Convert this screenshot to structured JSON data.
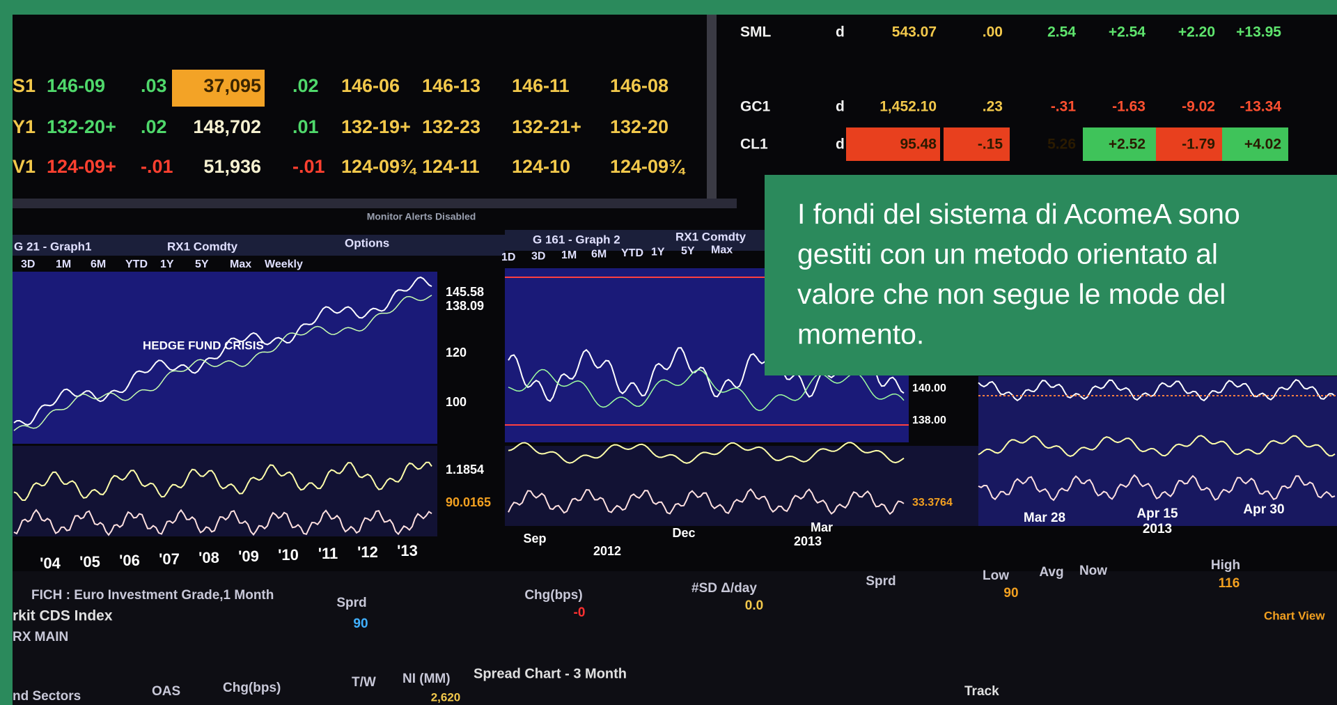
{
  "quotes_left": {
    "rows": [
      [
        "S1",
        "146-09",
        ".03",
        "37,095",
        ".02",
        "146-06",
        "146-13",
        "146-11",
        "146-08"
      ],
      [
        "Y1",
        "132-20+",
        ".02",
        "148,702",
        ".01",
        "132-19+",
        "132-23",
        "132-21+",
        "132-20"
      ],
      [
        "V1",
        "124-09+",
        "-.01",
        "51,936",
        "-.01",
        "124-09¾",
        "124-11",
        "124-10",
        "124-09¾"
      ]
    ]
  },
  "quotes_right": {
    "rows": [
      [
        "SML",
        "d",
        "543.07",
        ".00",
        "2.54",
        "+2.54",
        "+2.20",
        "+13.95"
      ],
      [
        "GC1",
        "d",
        "1,452.10",
        ".23",
        "-.31",
        "-1.63",
        "-9.02",
        "-13.34"
      ],
      [
        "CL1",
        "d",
        "95.48",
        "-.15",
        "5.26",
        "+2.52",
        "-1.79",
        "+4.02"
      ]
    ]
  },
  "status": "Monitor Alerts Disabled",
  "graph1": {
    "title": "G 21 - Graph1",
    "security": "RX1 Comdty",
    "options": "Options",
    "periods": [
      "3D",
      "1M",
      "6M",
      "YTD",
      "1Y",
      "5Y",
      "Max",
      "Weekly"
    ],
    "annotation": "HEDGE FUND CRISIS",
    "price_labels": [
      "145.58",
      "138.09",
      "120",
      "100",
      "1.1854",
      "90.0165"
    ],
    "years": [
      "'04",
      "'05",
      "'06",
      "'07",
      "'08",
      "'09",
      "'10",
      "'11",
      "'12",
      "'13"
    ]
  },
  "graph2": {
    "title": "G 161 - Graph 2",
    "security": "RX1 Comdty",
    "periods": [
      "1D",
      "3D",
      "1M",
      "6M",
      "YTD",
      "1Y",
      "5Y",
      "Max"
    ],
    "price_labels": [
      "140.00",
      "138.00",
      "33.3764"
    ],
    "x_labels": [
      "Sep",
      "2012",
      "Dec",
      "Mar",
      "2013"
    ]
  },
  "graph3": {
    "x_labels": [
      "Mar 28",
      "Apr 15",
      "2013",
      "Apr 30"
    ]
  },
  "bottom": {
    "index_title": "FICH : Euro Investment Grade,1 Month",
    "name": "rkit CDS Index",
    "code": "RX MAIN",
    "columns": [
      "Sprd",
      "Chg(bps)",
      "#SD Δ/day",
      "Sprd",
      "Low",
      "Avg",
      "Now",
      "High"
    ],
    "values": [
      "90",
      "-0",
      "0.0",
      "90",
      "116"
    ],
    "chart_view": "Chart View",
    "sectors": [
      "nd Sectors",
      "OAS",
      "Chg(bps)",
      "T/W",
      "NI (MM)"
    ],
    "ni_value": "2,620",
    "spread_chart": "Spread Chart - 3 Month",
    "track": "Track"
  },
  "overlay": {
    "lines": [
      "I fondi del sistema di AcomeA sono",
      "gestiti con un metodo orientato al",
      "valore che non segue le mode del",
      "momento."
    ]
  }
}
